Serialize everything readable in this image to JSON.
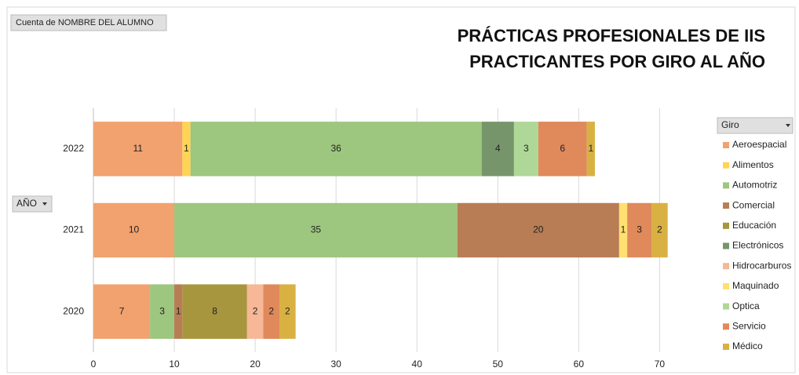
{
  "chart_data": {
    "type": "bar",
    "orientation": "horizontal",
    "stacked": true,
    "title": [
      "PRÁCTICAS PROFESIONALES DE IIS",
      "PRACTICANTES POR GIRO AL AÑO"
    ],
    "field_buttons": {
      "values": "Cuenta de NOMBRE DEL ALUMNO",
      "axis": "AÑO",
      "legend": "Giro"
    },
    "categories": [
      "2020",
      "2021",
      "2022"
    ],
    "series": [
      {
        "name": "Aeroespacial",
        "color": "#f1a26f",
        "values": [
          7,
          10,
          11
        ]
      },
      {
        "name": "Alimentos",
        "color": "#ffd455",
        "values": [
          null,
          null,
          1
        ]
      },
      {
        "name": "Automotriz",
        "color": "#9dc67f",
        "values": [
          3,
          35,
          36
        ]
      },
      {
        "name": "Comercial",
        "color": "#b87d55",
        "values": [
          1,
          20,
          null
        ]
      },
      {
        "name": "Educación",
        "color": "#a8963f",
        "values": [
          8,
          null,
          null
        ]
      },
      {
        "name": "Electrónicos",
        "color": "#77956b",
        "values": [
          null,
          null,
          4
        ]
      },
      {
        "name": "Hidrocarburos",
        "color": "#f6b896",
        "values": [
          2,
          null,
          null
        ]
      },
      {
        "name": "Maquinado",
        "color": "#ffe070",
        "values": [
          null,
          1,
          null
        ]
      },
      {
        "name": "Optica",
        "color": "#afd898",
        "values": [
          null,
          null,
          3
        ]
      },
      {
        "name": "Servicio",
        "color": "#e0895b",
        "values": [
          2,
          3,
          6
        ]
      },
      {
        "name": "Médico",
        "color": "#d9b143",
        "values": [
          2,
          2,
          1
        ]
      }
    ],
    "xlim": [
      0,
      72
    ],
    "xticks": [
      0,
      10,
      20,
      30,
      40,
      50,
      60,
      70
    ],
    "grid": true,
    "legend": "right"
  }
}
